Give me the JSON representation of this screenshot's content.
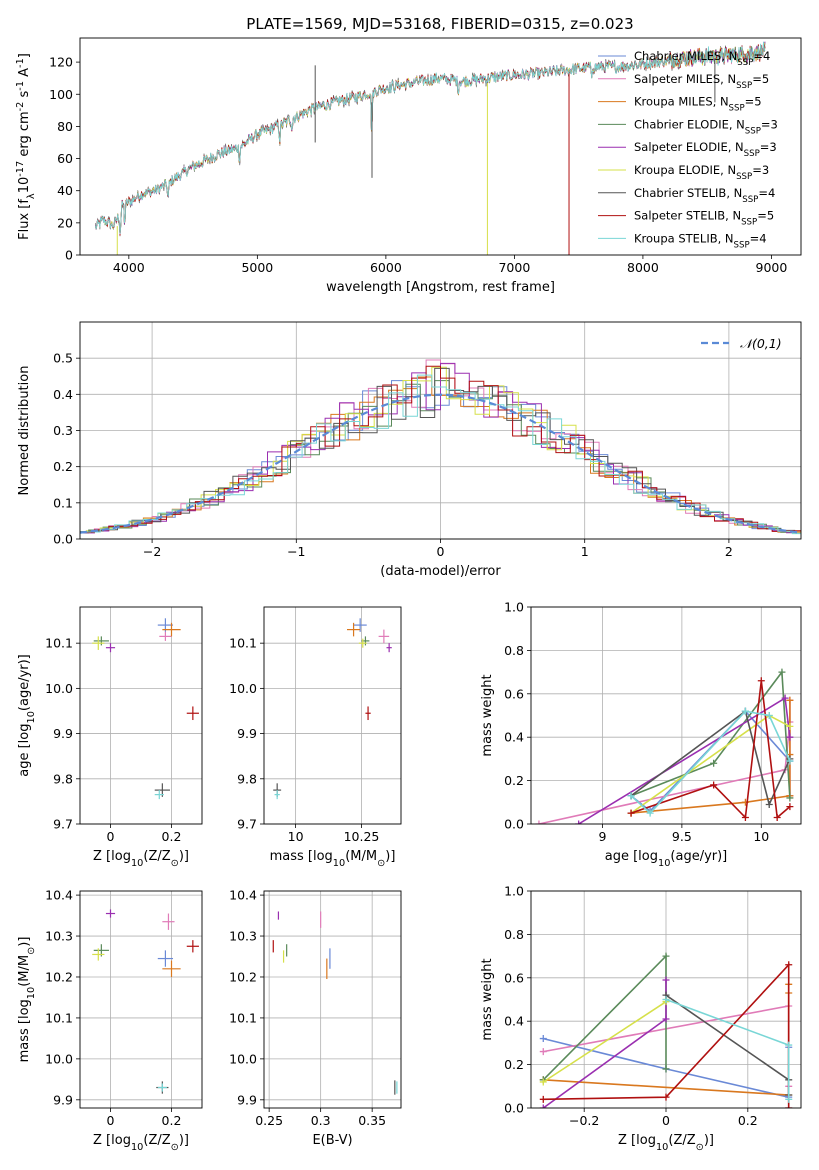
{
  "figure_title": "PLATE=1569, MJD=53168, FIBERID=0315, z=0.023",
  "models": [
    {
      "name": "Chabrier MILES, N$_{SSP}$=4",
      "color": "#6a89d6"
    },
    {
      "name": "Salpeter MILES, N$_{SSP}$=5",
      "color": "#e07bb8"
    },
    {
      "name": "Kroupa MILES, N$_{SSP}$=5",
      "color": "#d9781f"
    },
    {
      "name": "Chabrier ELODIE, N$_{SSP}$=3",
      "color": "#5a8a5a"
    },
    {
      "name": "Salpeter ELODIE, N$_{SSP}$=3",
      "color": "#9a2fb0"
    },
    {
      "name": "Kroupa ELODIE, N$_{SSP}$=3",
      "color": "#d6e04a"
    },
    {
      "name": "Chabrier STELIB, N$_{SSP}$=4",
      "color": "#555555"
    },
    {
      "name": "Salpeter STELIB, N$_{SSP}$=5",
      "color": "#b01010"
    },
    {
      "name": "Kroupa STELIB, N$_{SSP}$=4",
      "color": "#79d6d6"
    }
  ],
  "chart_data": [
    {
      "id": "spectrum",
      "type": "line",
      "title": "PLATE=1569, MJD=53168, FIBERID=0315, z=0.023",
      "xlabel": "wavelength [Angstrom, rest frame]",
      "ylabel": "Flux [f$_\\lambda$10$^{-17}$ erg cm$^{-2}$ s$^{-1}$ A$^{-1}$]",
      "xlim": [
        3620,
        9230
      ],
      "ylim": [
        0,
        135
      ],
      "xticks": [
        4000,
        5000,
        6000,
        7000,
        8000,
        9000
      ],
      "yticks": [
        0,
        20,
        40,
        60,
        80,
        100,
        120
      ],
      "grid": false,
      "legend": "upper right",
      "continuum": {
        "x": [
          3740,
          3800,
          3880,
          3920,
          3950,
          4000,
          4100,
          4200,
          4300,
          4400,
          4500,
          4700,
          4860,
          5000,
          5200,
          5400,
          5600,
          5800,
          6000,
          6200,
          6400,
          6600,
          6800,
          7000,
          7200,
          7400,
          7600,
          7800,
          8000,
          8200,
          8400,
          8600,
          8800,
          8950
        ],
        "y": [
          17,
          22,
          18,
          24,
          31,
          33,
          38,
          40,
          44,
          50,
          55,
          63,
          67,
          75,
          82,
          90,
          95,
          99,
          104,
          107,
          110,
          108,
          110,
          112,
          113,
          115,
          117,
          117,
          119,
          121,
          123,
          124,
          125,
          127
        ]
      },
      "absorption_features": [
        {
          "x": 3933,
          "depth": 14
        },
        {
          "x": 3968,
          "depth": 12
        },
        {
          "x": 4305,
          "depth": 10
        },
        {
          "x": 4861,
          "depth": 8
        },
        {
          "x": 5175,
          "depth": 10
        },
        {
          "x": 5270,
          "depth": 6
        },
        {
          "x": 5890,
          "depth": 25
        },
        {
          "x": 6563,
          "depth": 6
        },
        {
          "x": 7600,
          "depth": 6
        }
      ],
      "artifacts": [
        {
          "x": 3910,
          "y_low": 0,
          "y_high": 18,
          "color_index": 5
        },
        {
          "x": 5450,
          "y_low": 70,
          "y_high": 118,
          "color_index": 6
        },
        {
          "x": 5892,
          "y_low": 48,
          "y_high": 95,
          "color_index": 6
        },
        {
          "x": 6790,
          "y_low": 0,
          "y_high": 107,
          "color_index": 5
        },
        {
          "x": 7425,
          "y_low": 0,
          "y_high": 113,
          "color_index": 7
        },
        {
          "x": 8560,
          "y_low": 95,
          "y_high": 122,
          "color_index": 6
        }
      ]
    },
    {
      "id": "residual_histogram",
      "type": "line",
      "xlabel": "(data-model)/error",
      "ylabel": "Normed distribution",
      "xlim": [
        -2.5,
        2.5
      ],
      "ylim": [
        0,
        0.6
      ],
      "xticks": [
        -2,
        -1,
        0,
        1,
        2
      ],
      "yticks": [
        0.0,
        0.1,
        0.2,
        0.3,
        0.4,
        0.5
      ],
      "grid": true,
      "legend": "upper right",
      "reference_curve": {
        "label": "$\\mathcal{N}(0,1)$",
        "color": "#5a8ad6",
        "style": "dashed",
        "mean": 0,
        "sigma": 1
      },
      "bin_width": 0.1,
      "peak_scale": [
        1.05,
        1.1,
        1.02,
        0.97,
        1.08,
        1.12,
        1.03,
        1.06,
        1.0
      ]
    },
    {
      "id": "age_vs_metallicity",
      "type": "scatter",
      "xlabel": "Z [log$_{10}$(Z/Z$_\\odot$)]",
      "ylabel": "age  [log$_{10}$(age/yr)]",
      "xlim": [
        -0.1,
        0.3
      ],
      "ylim": [
        9.7,
        10.18
      ],
      "xticks": [
        0.0,
        0.2
      ],
      "yticks": [
        9.7,
        9.8,
        9.9,
        10.0,
        10.1
      ],
      "grid": true,
      "points": [
        {
          "c": 0,
          "x": 0.18,
          "y": 10.14,
          "xerr": 0.05,
          "yerr": 0.03
        },
        {
          "c": 1,
          "x": 0.18,
          "y": 10.115,
          "xerr": 0.04,
          "yerr": 0.02
        },
        {
          "c": 2,
          "x": 0.2,
          "y": 10.13,
          "xerr": 0.06,
          "yerr": 0.03
        },
        {
          "c": 3,
          "x": -0.03,
          "y": 10.105,
          "xerr": 0.05,
          "yerr": 0.02
        },
        {
          "c": 4,
          "x": 0.0,
          "y": 10.09,
          "xerr": 0.03,
          "yerr": 0.02
        },
        {
          "c": 5,
          "x": -0.04,
          "y": 10.1,
          "xerr": 0.04,
          "yerr": 0.03
        },
        {
          "c": 6,
          "x": 0.17,
          "y": 9.775,
          "xerr": 0.05,
          "yerr": 0.03
        },
        {
          "c": 7,
          "x": 0.27,
          "y": 9.945,
          "xerr": 0.04,
          "yerr": 0.03
        },
        {
          "c": 8,
          "x": 0.16,
          "y": 9.765,
          "xerr": 0.03,
          "yerr": 0.02
        }
      ]
    },
    {
      "id": "age_vs_mass",
      "type": "scatter",
      "xlabel": "mass [log$_{10}$(M/M$_\\odot$)]",
      "ylabel": "",
      "xlim": [
        9.88,
        10.4
      ],
      "ylim": [
        9.7,
        10.18
      ],
      "xticks": [
        10.0,
        10.25
      ],
      "yticks": [
        9.7,
        9.8,
        9.9,
        10.0,
        10.1
      ],
      "grid": true,
      "points": [
        {
          "c": 0,
          "x": 10.245,
          "y": 10.14,
          "xerr": 0.05,
          "yerr": 0.03
        },
        {
          "c": 1,
          "x": 10.335,
          "y": 10.115,
          "xerr": 0.04,
          "yerr": 0.03
        },
        {
          "c": 2,
          "x": 10.22,
          "y": 10.13,
          "xerr": 0.05,
          "yerr": 0.03
        },
        {
          "c": 3,
          "x": 10.265,
          "y": 10.105,
          "xerr": 0.03,
          "yerr": 0.02
        },
        {
          "c": 4,
          "x": 10.355,
          "y": 10.09,
          "xerr": 0.02,
          "yerr": 0.02
        },
        {
          "c": 5,
          "x": 10.255,
          "y": 10.1,
          "xerr": 0.03,
          "yerr": 0.02
        },
        {
          "c": 6,
          "x": 9.93,
          "y": 9.775,
          "xerr": 0.03,
          "yerr": 0.03
        },
        {
          "c": 7,
          "x": 10.275,
          "y": 9.945,
          "xerr": 0.02,
          "yerr": 0.03
        },
        {
          "c": 8,
          "x": 9.93,
          "y": 9.765,
          "xerr": 0.02,
          "yerr": 0.02
        }
      ]
    },
    {
      "id": "mass_weight_vs_age",
      "type": "line",
      "xlabel": "age  [log$_{10}$(age/yr)]",
      "ylabel": "mass weight",
      "xlim": [
        8.55,
        10.25
      ],
      "ylim": [
        0,
        1
      ],
      "xticks": [
        9.0,
        9.5,
        10.0
      ],
      "yticks": [
        0.0,
        0.2,
        0.4,
        0.6,
        0.8,
        1.0
      ],
      "grid": true,
      "series": [
        {
          "c": 0,
          "x": [
            9.18,
            9.3,
            9.9,
            10.18
          ],
          "y": [
            0.13,
            0.06,
            0.52,
            0.29
          ]
        },
        {
          "c": 1,
          "x": [
            8.6,
            10.15,
            10.18,
            10.18,
            10.18
          ],
          "y": [
            0.0,
            0.25,
            0.47,
            0.57,
            0.13
          ]
        },
        {
          "c": 2,
          "x": [
            9.18,
            9.9,
            10.18,
            10.18,
            10.18
          ],
          "y": [
            0.05,
            0.1,
            0.13,
            0.57,
            0.32
          ]
        },
        {
          "c": 3,
          "x": [
            9.18,
            9.7,
            10.13,
            10.18
          ],
          "y": [
            0.13,
            0.28,
            0.7,
            0.12
          ]
        },
        {
          "c": 4,
          "x": [
            8.85,
            10.15,
            10.18
          ],
          "y": [
            0.0,
            0.58,
            0.4
          ]
        },
        {
          "c": 5,
          "x": [
            9.18,
            10.05,
            10.18
          ],
          "y": [
            0.05,
            0.5,
            0.45
          ]
        },
        {
          "c": 6,
          "x": [
            9.18,
            9.9,
            10.05,
            10.18
          ],
          "y": [
            0.13,
            0.52,
            0.09,
            0.3
          ]
        },
        {
          "c": 7,
          "x": [
            9.18,
            9.7,
            9.9,
            10.0,
            10.1,
            10.18
          ],
          "y": [
            0.05,
            0.18,
            0.03,
            0.66,
            0.03,
            0.08
          ]
        },
        {
          "c": 8,
          "x": [
            9.18,
            9.3,
            9.9,
            10.05,
            10.18
          ],
          "y": [
            0.13,
            0.05,
            0.52,
            0.5,
            0.29
          ]
        }
      ]
    },
    {
      "id": "mass_vs_metallicity",
      "type": "scatter",
      "xlabel": "Z [log$_{10}$(Z/Z$_\\odot$)]",
      "ylabel": "mass [log$_{10}$(M/M$_\\odot$)]",
      "xlim": [
        -0.1,
        0.3
      ],
      "ylim": [
        9.88,
        10.41
      ],
      "xticks": [
        0.0,
        0.2
      ],
      "yticks": [
        9.9,
        10.0,
        10.1,
        10.2,
        10.3,
        10.4
      ],
      "grid": true,
      "points": [
        {
          "c": 0,
          "x": 0.18,
          "y": 10.245,
          "xerr": 0.05,
          "yerr": 0.04
        },
        {
          "c": 1,
          "x": 0.19,
          "y": 10.335,
          "xerr": 0.04,
          "yerr": 0.04
        },
        {
          "c": 2,
          "x": 0.2,
          "y": 10.22,
          "xerr": 0.06,
          "yerr": 0.04
        },
        {
          "c": 3,
          "x": -0.03,
          "y": 10.265,
          "xerr": 0.05,
          "yerr": 0.03
        },
        {
          "c": 4,
          "x": 0.0,
          "y": 10.355,
          "xerr": 0.03,
          "yerr": 0.02
        },
        {
          "c": 5,
          "x": -0.04,
          "y": 10.255,
          "xerr": 0.04,
          "yerr": 0.03
        },
        {
          "c": 6,
          "x": 0.17,
          "y": 9.93,
          "xerr": 0.04,
          "yerr": 0.03
        },
        {
          "c": 7,
          "x": 0.27,
          "y": 10.275,
          "xerr": 0.04,
          "yerr": 0.03
        },
        {
          "c": 8,
          "x": 0.17,
          "y": 9.93,
          "xerr": 0.03,
          "yerr": 0.02
        }
      ]
    },
    {
      "id": "mass_vs_ebv",
      "type": "scatter",
      "xlabel": "E(B-V)",
      "ylabel": "",
      "xlim": [
        0.245,
        0.378
      ],
      "ylim": [
        9.88,
        10.41
      ],
      "xticks": [
        0.25,
        0.3,
        0.35
      ],
      "yticks": [
        9.9,
        10.0,
        10.1,
        10.2,
        10.3,
        10.4
      ],
      "grid": true,
      "points": [
        {
          "c": 0,
          "x": 0.309,
          "y": 10.245,
          "xerr": 0.0,
          "yerr": 0.05
        },
        {
          "c": 1,
          "x": 0.3,
          "y": 10.34,
          "xerr": 0.0,
          "yerr": 0.04
        },
        {
          "c": 2,
          "x": 0.306,
          "y": 10.22,
          "xerr": 0.0,
          "yerr": 0.05
        },
        {
          "c": 3,
          "x": 0.267,
          "y": 10.265,
          "xerr": 0.0,
          "yerr": 0.03
        },
        {
          "c": 4,
          "x": 0.259,
          "y": 10.35,
          "xerr": 0.0,
          "yerr": 0.02
        },
        {
          "c": 5,
          "x": 0.264,
          "y": 10.25,
          "xerr": 0.0,
          "yerr": 0.03
        },
        {
          "c": 6,
          "x": 0.372,
          "y": 9.93,
          "xerr": 0.0,
          "yerr": 0.035
        },
        {
          "c": 7,
          "x": 0.254,
          "y": 10.275,
          "xerr": 0.0,
          "yerr": 0.03
        },
        {
          "c": 8,
          "x": 0.374,
          "y": 9.93,
          "xerr": 0.0,
          "yerr": 0.03
        }
      ]
    },
    {
      "id": "mass_weight_vs_metallicity",
      "type": "line",
      "xlabel": "Z [log$_{10}$(Z/Z$_\\odot$)]",
      "ylabel": "mass weight",
      "xlim": [
        -0.33,
        0.33
      ],
      "ylim": [
        0,
        1
      ],
      "xticks": [
        -0.2,
        0.0,
        0.2
      ],
      "yticks": [
        0.0,
        0.2,
        0.4,
        0.6,
        0.8,
        1.0
      ],
      "grid": true,
      "series": [
        {
          "c": 0,
          "x": [
            -0.3,
            0.0,
            0.3,
            0.3
          ],
          "y": [
            0.32,
            0.18,
            0.05,
            0.28
          ]
        },
        {
          "c": 1,
          "x": [
            -0.3,
            0.3,
            0.3,
            0.3
          ],
          "y": [
            0.26,
            0.47,
            0.1,
            0.0
          ]
        },
        {
          "c": 2,
          "x": [
            -0.3,
            0.3,
            0.3,
            0.3
          ],
          "y": [
            0.13,
            0.06,
            0.57,
            0.53
          ]
        },
        {
          "c": 3,
          "x": [
            -0.3,
            0.0,
            0.0
          ],
          "y": [
            0.13,
            0.7,
            0.18
          ]
        },
        {
          "c": 4,
          "x": [
            -0.3,
            0.0,
            0.0
          ],
          "y": [
            0.0,
            0.41,
            0.59
          ]
        },
        {
          "c": 5,
          "x": [
            -0.3,
            0.0,
            0.0
          ],
          "y": [
            0.12,
            0.49,
            0.5
          ]
        },
        {
          "c": 6,
          "x": [
            0.0,
            0.3,
            0.3
          ],
          "y": [
            0.52,
            0.13,
            0.06
          ]
        },
        {
          "c": 7,
          "x": [
            -0.3,
            0.0,
            0.3,
            0.3
          ],
          "y": [
            0.04,
            0.05,
            0.66,
            0.0
          ]
        },
        {
          "c": 8,
          "x": [
            0.0,
            0.3,
            0.3
          ],
          "y": [
            0.5,
            0.29,
            0.04
          ]
        }
      ]
    }
  ]
}
